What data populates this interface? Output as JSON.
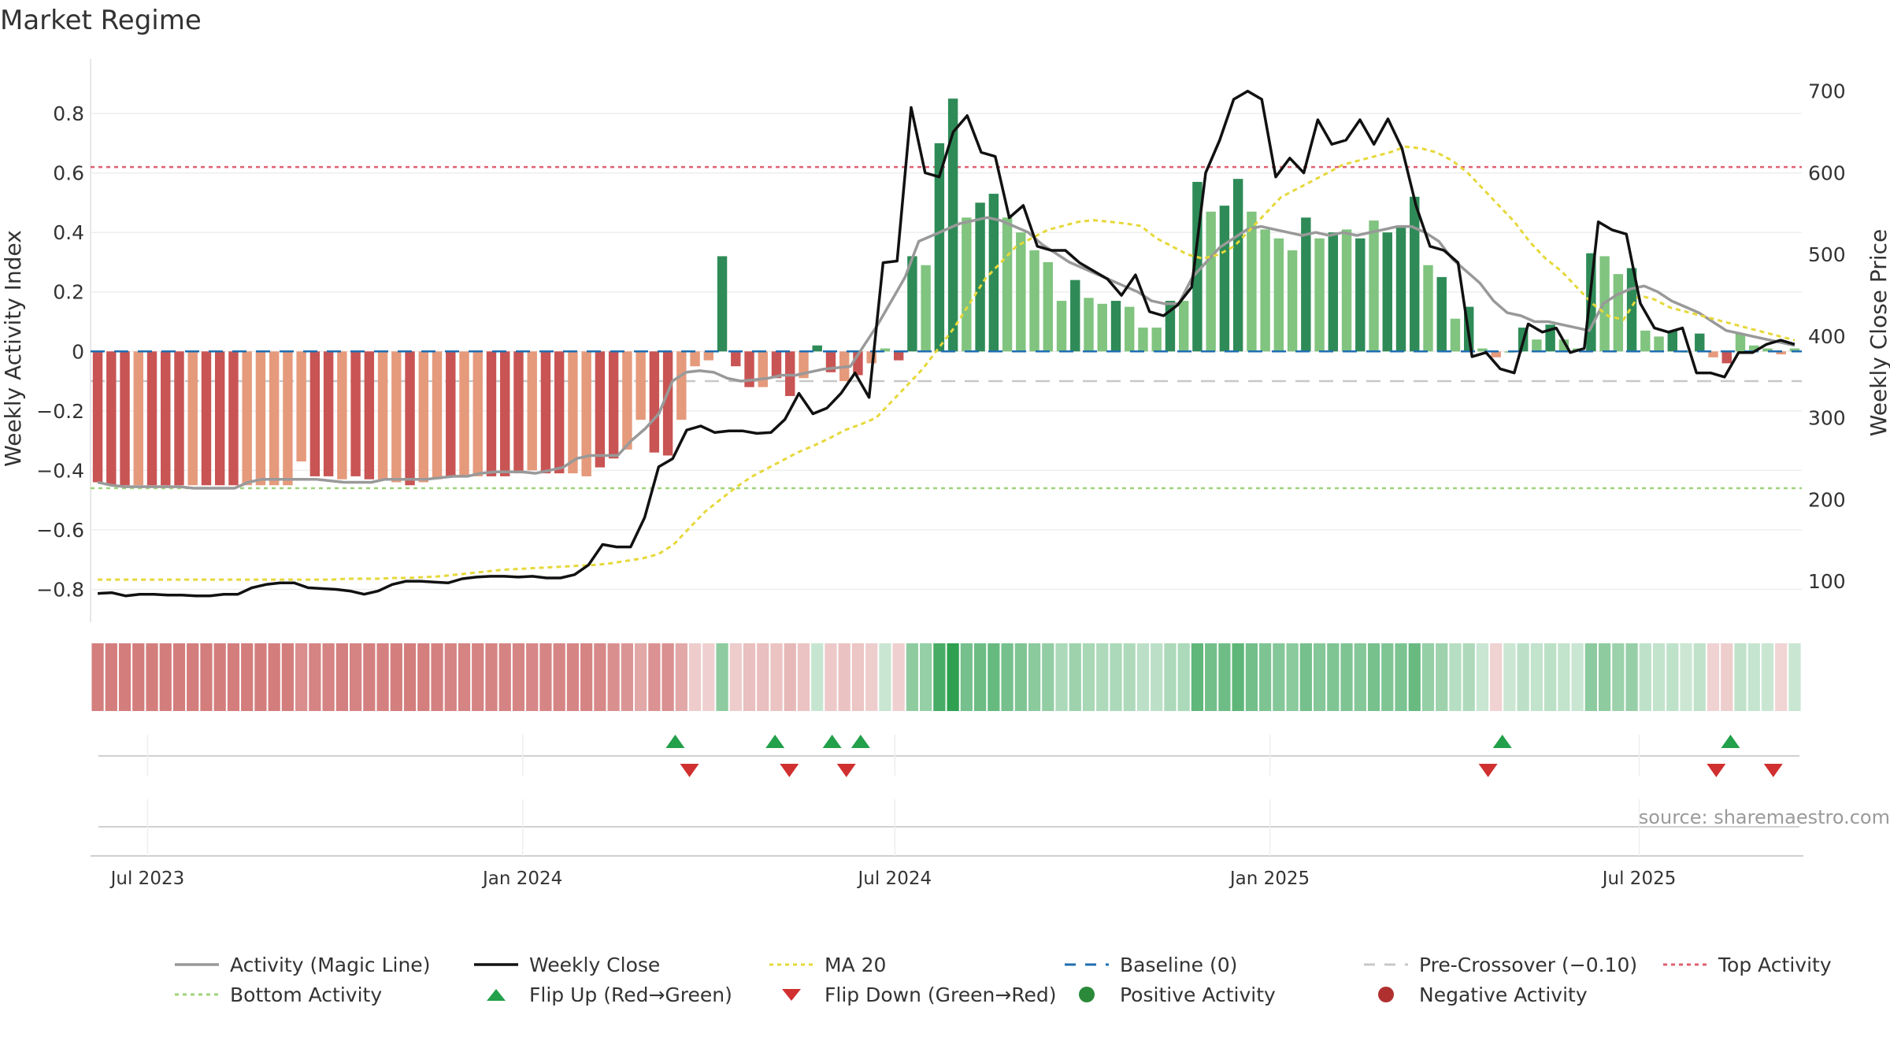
{
  "title": "Market Regime",
  "source_text": "source: sharemaestro.com",
  "colors": {
    "neg_strong": "#c95454",
    "neg_weak": "#e59a7c",
    "pos_strong": "#2e8b57",
    "pos_weak": "#80c47f",
    "close": "#111111",
    "ma20": "#e6d83a",
    "magic": "#999999",
    "baseline": "#1f6fb2",
    "pre_crossover": "#c8c8c8",
    "top": "#e06070",
    "bottom": "#9ed47a",
    "flip_up": "#22a04a",
    "flip_down": "#d03030"
  },
  "chart_data": {
    "type": "bar",
    "ylabel": "Weekly Activity Index",
    "y2label": "Weekly Close Price",
    "ylim": [
      -0.91,
      0.93
    ],
    "y2lim": [
      50,
      720
    ],
    "yticks": [
      {
        "v": 0.8,
        "l": "0.8"
      },
      {
        "v": 0.6,
        "l": "0.6"
      },
      {
        "v": 0.4,
        "l": "0.4"
      },
      {
        "v": 0.2,
        "l": "0.2"
      },
      {
        "v": 0,
        "l": "0"
      },
      {
        "v": -0.2,
        "l": "−0.2"
      },
      {
        "v": -0.4,
        "l": "−0.4"
      },
      {
        "v": -0.6,
        "l": "−0.6"
      },
      {
        "v": -0.8,
        "l": "−0.8"
      }
    ],
    "y2ticks": [
      {
        "v": 700,
        "l": "700"
      },
      {
        "v": 600,
        "l": "600"
      },
      {
        "v": 500,
        "l": "500"
      },
      {
        "v": 400,
        "l": "400"
      },
      {
        "v": 300,
        "l": "300"
      },
      {
        "v": 200,
        "l": "200"
      },
      {
        "v": 100,
        "l": "100"
      }
    ],
    "x_start_week": -4,
    "x_end_week": 116,
    "xticks": [
      {
        "w": 0,
        "l": "Jul 2023"
      },
      {
        "w": 26.3,
        "l": "Jan 2024"
      },
      {
        "w": 52.4,
        "l": "Jul 2024"
      },
      {
        "w": 78.7,
        "l": "Jan 2025"
      },
      {
        "w": 104.6,
        "l": "Jul 2025"
      }
    ],
    "activity": [
      -0.44,
      -0.45,
      -0.45,
      -0.45,
      -0.45,
      -0.45,
      -0.45,
      -0.45,
      -0.45,
      -0.45,
      -0.45,
      -0.45,
      -0.45,
      -0.45,
      -0.45,
      -0.37,
      -0.42,
      -0.42,
      -0.43,
      -0.42,
      -0.43,
      -0.43,
      -0.44,
      -0.45,
      -0.44,
      -0.43,
      -0.42,
      -0.42,
      -0.42,
      -0.42,
      -0.42,
      -0.41,
      -0.4,
      -0.41,
      -0.41,
      -0.41,
      -0.42,
      -0.39,
      -0.36,
      -0.33,
      -0.23,
      -0.34,
      -0.35,
      -0.23,
      -0.05,
      -0.03,
      0.32,
      -0.05,
      -0.12,
      -0.12,
      -0.09,
      -0.15,
      -0.09,
      0.02,
      -0.07,
      -0.1,
      -0.08,
      -0.04,
      0.01,
      -0.03,
      0.32,
      0.29,
      0.7,
      0.85,
      0.45,
      0.5,
      0.53,
      0.45,
      0.4,
      0.34,
      0.3,
      0.17,
      0.24,
      0.18,
      0.16,
      0.17,
      0.15,
      0.08,
      0.08,
      0.17,
      0.17,
      0.57,
      0.47,
      0.49,
      0.58,
      0.47,
      0.41,
      0.38,
      0.34,
      0.45,
      0.38,
      0.4,
      0.41,
      0.38,
      0.44,
      0.4,
      0.42,
      0.52,
      0.29,
      0.25,
      0.11,
      0.15,
      0.01,
      -0.02,
      0.0,
      0.08,
      0.04,
      0.09,
      0.04,
      0.01,
      0.33,
      0.32,
      0.26,
      0.28,
      0.07,
      0.05,
      0.07,
      0.0,
      0.06,
      -0.02,
      -0.04,
      0.06,
      0.02,
      0.01,
      -0.01,
      0.01
    ],
    "activity_strength": [
      "s",
      "s",
      "s",
      "w",
      "s",
      "s",
      "s",
      "w",
      "s",
      "s",
      "s",
      "w",
      "w",
      "w",
      "w",
      "w",
      "s",
      "s",
      "w",
      "s",
      "s",
      "w",
      "w",
      "s",
      "w",
      "w",
      "s",
      "w",
      "w",
      "s",
      "s",
      "s",
      "w",
      "s",
      "s",
      "w",
      "w",
      "s",
      "s",
      "w",
      "w",
      "s",
      "s",
      "w",
      "w",
      "w",
      "s",
      "s",
      "s",
      "w",
      "s",
      "s",
      "w",
      "s",
      "s",
      "w",
      "s",
      "w",
      "w",
      "s",
      "s",
      "w",
      "s",
      "s",
      "w",
      "s",
      "s",
      "w",
      "w",
      "w",
      "w",
      "w",
      "s",
      "w",
      "w",
      "s",
      "w",
      "w",
      "w",
      "s",
      "w",
      "s",
      "w",
      "s",
      "s",
      "w",
      "w",
      "w",
      "w",
      "s",
      "w",
      "s",
      "w",
      "s",
      "w",
      "s",
      "s",
      "s",
      "w",
      "s",
      "w",
      "s",
      "w",
      "w",
      "w",
      "s",
      "w",
      "s",
      "w",
      "w",
      "s",
      "w",
      "w",
      "s",
      "w",
      "w",
      "s",
      "w",
      "s",
      "w",
      "s",
      "w",
      "w",
      "w",
      "w",
      "w"
    ],
    "close": [
      85,
      86,
      82,
      84,
      84,
      83,
      83,
      82,
      82,
      84,
      84,
      92,
      96,
      98,
      98,
      92,
      91,
      90,
      88,
      84,
      88,
      96,
      100,
      100,
      99,
      98,
      103,
      105,
      106,
      106,
      105,
      106,
      104,
      104,
      108,
      120,
      145,
      142,
      142,
      178,
      240,
      250,
      285,
      290,
      282,
      284,
      284,
      281,
      282,
      298,
      330,
      305,
      312,
      330,
      355,
      325,
      490,
      492,
      680,
      600,
      595,
      650,
      670,
      625,
      620,
      545,
      560,
      510,
      505,
      505,
      490,
      480,
      470,
      450,
      475,
      430,
      425,
      438,
      460,
      600,
      640,
      690,
      700,
      690,
      595,
      618,
      600,
      665,
      635,
      640,
      665,
      635,
      666,
      630,
      560,
      510,
      505,
      490,
      375,
      380,
      360,
      355,
      415,
      405,
      410,
      380,
      385,
      540,
      530,
      525,
      440,
      410,
      405,
      410,
      355,
      355,
      350,
      380,
      380,
      390,
      395,
      390
    ],
    "ma20": [
      102,
      102,
      102,
      102,
      102,
      102,
      102,
      102,
      102,
      102,
      102,
      102,
      102,
      102,
      102,
      102,
      103,
      103,
      103,
      104,
      104,
      105,
      106,
      108,
      110,
      112,
      114,
      115,
      116,
      117,
      118,
      119,
      120,
      122,
      125,
      128,
      133,
      145,
      165,
      185,
      200,
      215,
      228,
      238,
      248,
      258,
      266,
      275,
      285,
      292,
      300,
      320,
      340,
      360,
      385,
      410,
      440,
      470,
      490,
      510,
      520,
      530,
      535,
      540,
      542,
      540,
      538,
      535,
      520,
      510,
      500,
      495,
      500,
      510,
      530,
      550,
      570,
      580,
      590,
      600,
      610,
      615,
      620,
      625,
      632,
      630,
      625,
      615,
      600,
      580,
      560,
      540,
      515,
      495,
      480,
      460,
      440,
      425,
      420,
      450,
      445,
      435,
      430,
      425,
      420,
      415,
      410,
      405,
      400,
      395
    ],
    "magic": [
      -0.44,
      -0.45,
      -0.455,
      -0.455,
      -0.455,
      -0.455,
      -0.455,
      -0.46,
      -0.46,
      -0.46,
      -0.46,
      -0.44,
      -0.43,
      -0.43,
      -0.43,
      -0.43,
      -0.43,
      -0.435,
      -0.44,
      -0.44,
      -0.44,
      -0.43,
      -0.43,
      -0.43,
      -0.43,
      -0.425,
      -0.42,
      -0.42,
      -0.41,
      -0.405,
      -0.405,
      -0.405,
      -0.41,
      -0.4,
      -0.39,
      -0.36,
      -0.35,
      -0.35,
      -0.35,
      -0.3,
      -0.26,
      -0.21,
      -0.1,
      -0.07,
      -0.065,
      -0.07,
      -0.09,
      -0.1,
      -0.095,
      -0.09,
      -0.08,
      -0.08,
      -0.07,
      -0.06,
      -0.055,
      -0.05,
      0.02,
      0.09,
      0.17,
      0.25,
      0.37,
      0.39,
      0.41,
      0.43,
      0.44,
      0.45,
      0.44,
      0.42,
      0.4,
      0.36,
      0.33,
      0.3,
      0.28,
      0.26,
      0.24,
      0.22,
      0.2,
      0.17,
      0.16,
      0.16,
      0.25,
      0.3,
      0.35,
      0.38,
      0.41,
      0.42,
      0.41,
      0.4,
      0.39,
      0.4,
      0.39,
      0.4,
      0.39,
      0.4,
      0.41,
      0.42,
      0.42,
      0.4,
      0.37,
      0.31,
      0.27,
      0.23,
      0.17,
      0.13,
      0.12,
      0.1,
      0.1,
      0.09,
      0.08,
      0.07,
      0.16,
      0.19,
      0.21,
      0.22,
      0.2,
      0.17,
      0.15,
      0.13,
      0.1,
      0.07,
      0.06,
      0.05,
      0.04,
      0.03,
      0.02
    ],
    "baseline": 0,
    "pre_crossover": -0.1,
    "top_activity": 0.62,
    "bottom_activity": -0.46,
    "flip_up_weeks": [
      37,
      44,
      48,
      50,
      95,
      111
    ],
    "flip_down_weeks": [
      38,
      45,
      49,
      94,
      110,
      114
    ]
  },
  "legend": [
    {
      "key": "magic",
      "label": "Activity (Magic Line)",
      "style": "line"
    },
    {
      "key": "close",
      "label": "Weekly Close",
      "style": "line"
    },
    {
      "key": "ma20",
      "label": "MA 20",
      "style": "dotted"
    },
    {
      "key": "baseline",
      "label": "Baseline (0)",
      "style": "dashed"
    },
    {
      "key": "pre_crossover",
      "label": "Pre-Crossover (−0.10)",
      "style": "dashed"
    },
    {
      "key": "top",
      "label": "Top Activity",
      "style": "dotted"
    },
    {
      "key": "bottom",
      "label": "Bottom Activity",
      "style": "dotted"
    },
    {
      "key": "flip_up",
      "label": "Flip Up (Red→Green)",
      "style": "tri-up"
    },
    {
      "key": "flip_down",
      "label": "Flip Down (Green→Red)",
      "style": "tri-down"
    },
    {
      "key": "pos",
      "label": "Positive Activity",
      "style": "circle-green"
    },
    {
      "key": "neg",
      "label": "Negative Activity",
      "style": "circle-red"
    }
  ]
}
